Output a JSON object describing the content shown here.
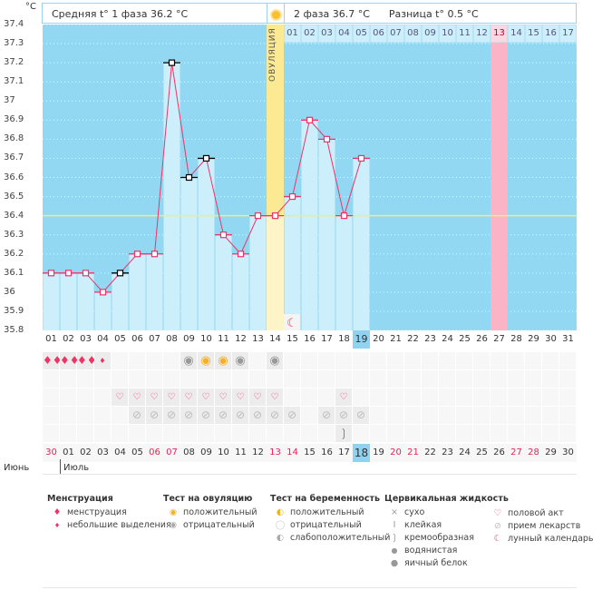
{
  "header": {
    "unit": "°C",
    "phase1": "Средняя t° 1 фаза 36.2 °C",
    "phase2": "2 фаза 36.7 °C",
    "diff": "Разница t° 0.5 °C",
    "ovulation_label": "ОВУЛЯЦИЯ"
  },
  "chart_data": {
    "type": "line",
    "ylabel": "°C",
    "ylim": [
      35.8,
      37.4
    ],
    "yticks": [
      "37.4",
      "37.3",
      "37.2",
      "37.1",
      "37",
      "36.9",
      "36.8",
      "36.7",
      "36.6",
      "36.5",
      "36.4",
      "36.3",
      "36.2",
      "36.1",
      "36",
      "35.9",
      "35.8"
    ],
    "cycle_days": [
      "01",
      "02",
      "03",
      "04",
      "05",
      "06",
      "07",
      "08",
      "09",
      "10",
      "11",
      "12",
      "13",
      "14",
      "15",
      "16",
      "17",
      "18",
      "19",
      "20",
      "21",
      "22",
      "23",
      "24",
      "25",
      "26",
      "27",
      "28",
      "29",
      "30",
      "31"
    ],
    "temperatures": [
      36.1,
      36.1,
      36.1,
      36.0,
      36.1,
      36.2,
      36.2,
      37.2,
      36.6,
      36.7,
      36.3,
      36.2,
      36.4,
      36.4,
      36.5,
      36.9,
      36.8,
      36.4,
      36.7
    ],
    "black_markers_days": [
      5,
      8,
      9,
      10
    ],
    "coverline": 36.4,
    "ovulation_day": 14,
    "today_day": 19,
    "phase2_days": [
      "01",
      "02",
      "03",
      "04",
      "05",
      "06",
      "07",
      "08",
      "09",
      "10",
      "11",
      "12",
      "13",
      "14",
      "15",
      "16",
      "17"
    ],
    "highlight_phase2_day": "13",
    "lunar_day": 15,
    "colors": {
      "bg": "#93d8f2",
      "bar": "#cdeefb",
      "line": "#ee3366",
      "coverline": "#f6e88a",
      "ovulation": "#fbe994",
      "highlight": "#fbb3c6"
    }
  },
  "rows": {
    "menstruation": {
      "1": "full",
      "2": "full",
      "3": "full",
      "4": "light"
    },
    "ovulation_test": {
      "9": "negative",
      "10": "positive",
      "11": "positive",
      "12": "negative",
      "14": "negative"
    },
    "intercourse": [
      5,
      6,
      7,
      8,
      9,
      10,
      11,
      12,
      13,
      14,
      18
    ],
    "medication": [
      6,
      7,
      8,
      9,
      10,
      11,
      12,
      13,
      14,
      15,
      17,
      18,
      19
    ],
    "cervical": {
      "18": "creamy"
    }
  },
  "calendar": {
    "dates": [
      "30",
      "01",
      "02",
      "03",
      "04",
      "05",
      "06",
      "07",
      "08",
      "09",
      "10",
      "11",
      "12",
      "13",
      "14",
      "15",
      "16",
      "17",
      "18",
      "19",
      "20",
      "21",
      "22",
      "23",
      "24",
      "25",
      "26",
      "27",
      "28",
      "29",
      "30"
    ],
    "weekend_idx": [
      0,
      6,
      7,
      13,
      14,
      20,
      21,
      27,
      28
    ],
    "today_idx": 18,
    "month1": "Июнь",
    "month2": "Июль"
  },
  "legend": {
    "menstruation": {
      "title": "Менструация",
      "items": [
        "менструация",
        "небольшие выделения"
      ]
    },
    "ovulation": {
      "title": "Тест на овуляцию",
      "items": [
        "положительный",
        "отрицательный"
      ]
    },
    "pregnancy": {
      "title": "Тест на беременность",
      "items": [
        "положительный",
        "отрицательный",
        "слабоположительный"
      ]
    },
    "cervical": {
      "title": "Цервикальная жидкость",
      "items": [
        "сухо",
        "клейкая",
        "кремообразная",
        "водянистая",
        "яичный белок"
      ]
    },
    "other": {
      "items": [
        "половой акт",
        "прием лекарств",
        "лунный календарь"
      ]
    }
  }
}
